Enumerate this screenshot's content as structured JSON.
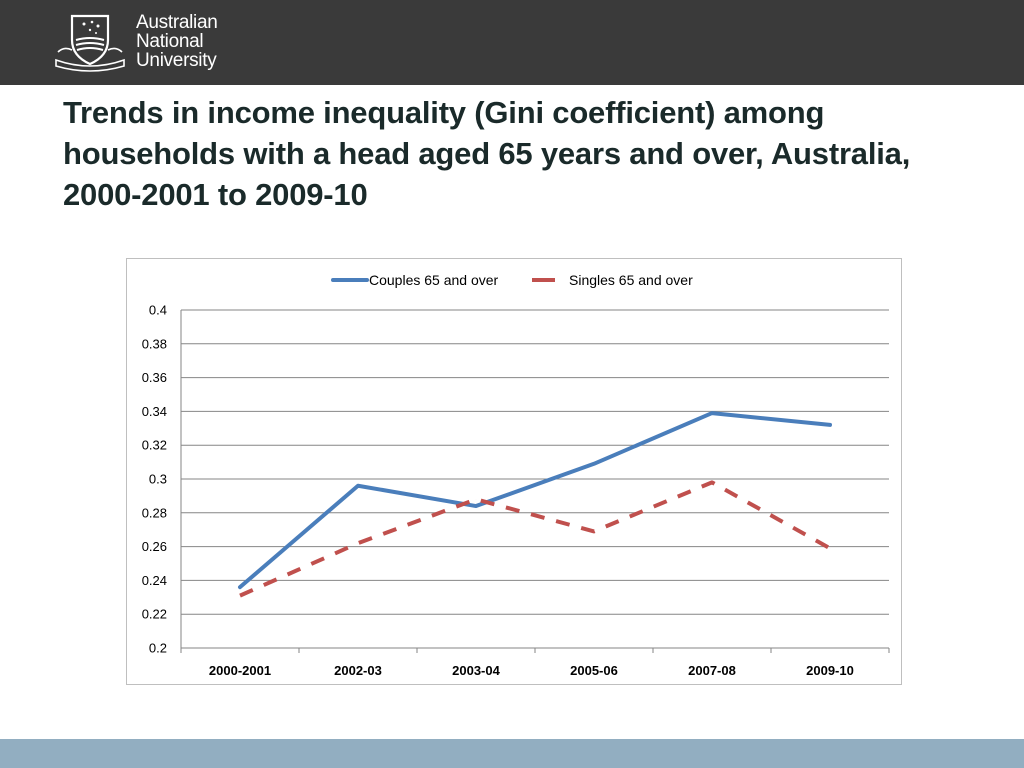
{
  "header": {
    "logo_line1": "Australian",
    "logo_line2": "National",
    "logo_line3": "University",
    "background_color": "#3a3a3a"
  },
  "slide": {
    "title": "Trends in income inequality (Gini coefficient) among households with a head aged 65 years and over, Australia, 2000-2001 to 2009-10"
  },
  "footer": {
    "color": "#92aec1"
  },
  "chart_data": {
    "type": "line",
    "categories": [
      "2000-2001",
      "2002-03",
      "2003-04",
      "2005-06",
      "2007-08",
      "2009-10"
    ],
    "series": [
      {
        "name": "Couples 65 and over",
        "values": [
          0.236,
          0.296,
          0.284,
          0.309,
          0.339,
          0.332
        ],
        "color": "#4a7ebb",
        "style": "solid"
      },
      {
        "name": "Singles 65 and over",
        "values": [
          0.231,
          0.262,
          0.288,
          0.269,
          0.298,
          0.259
        ],
        "color": "#c0504d",
        "style": "dashed"
      }
    ],
    "yticks": [
      "0.2",
      "0.22",
      "0.24",
      "0.26",
      "0.28",
      "0.3",
      "0.32",
      "0.34",
      "0.36",
      "0.38",
      "0.4"
    ],
    "ylim": [
      0.2,
      0.4
    ],
    "grid": true,
    "legend_position": "top"
  }
}
